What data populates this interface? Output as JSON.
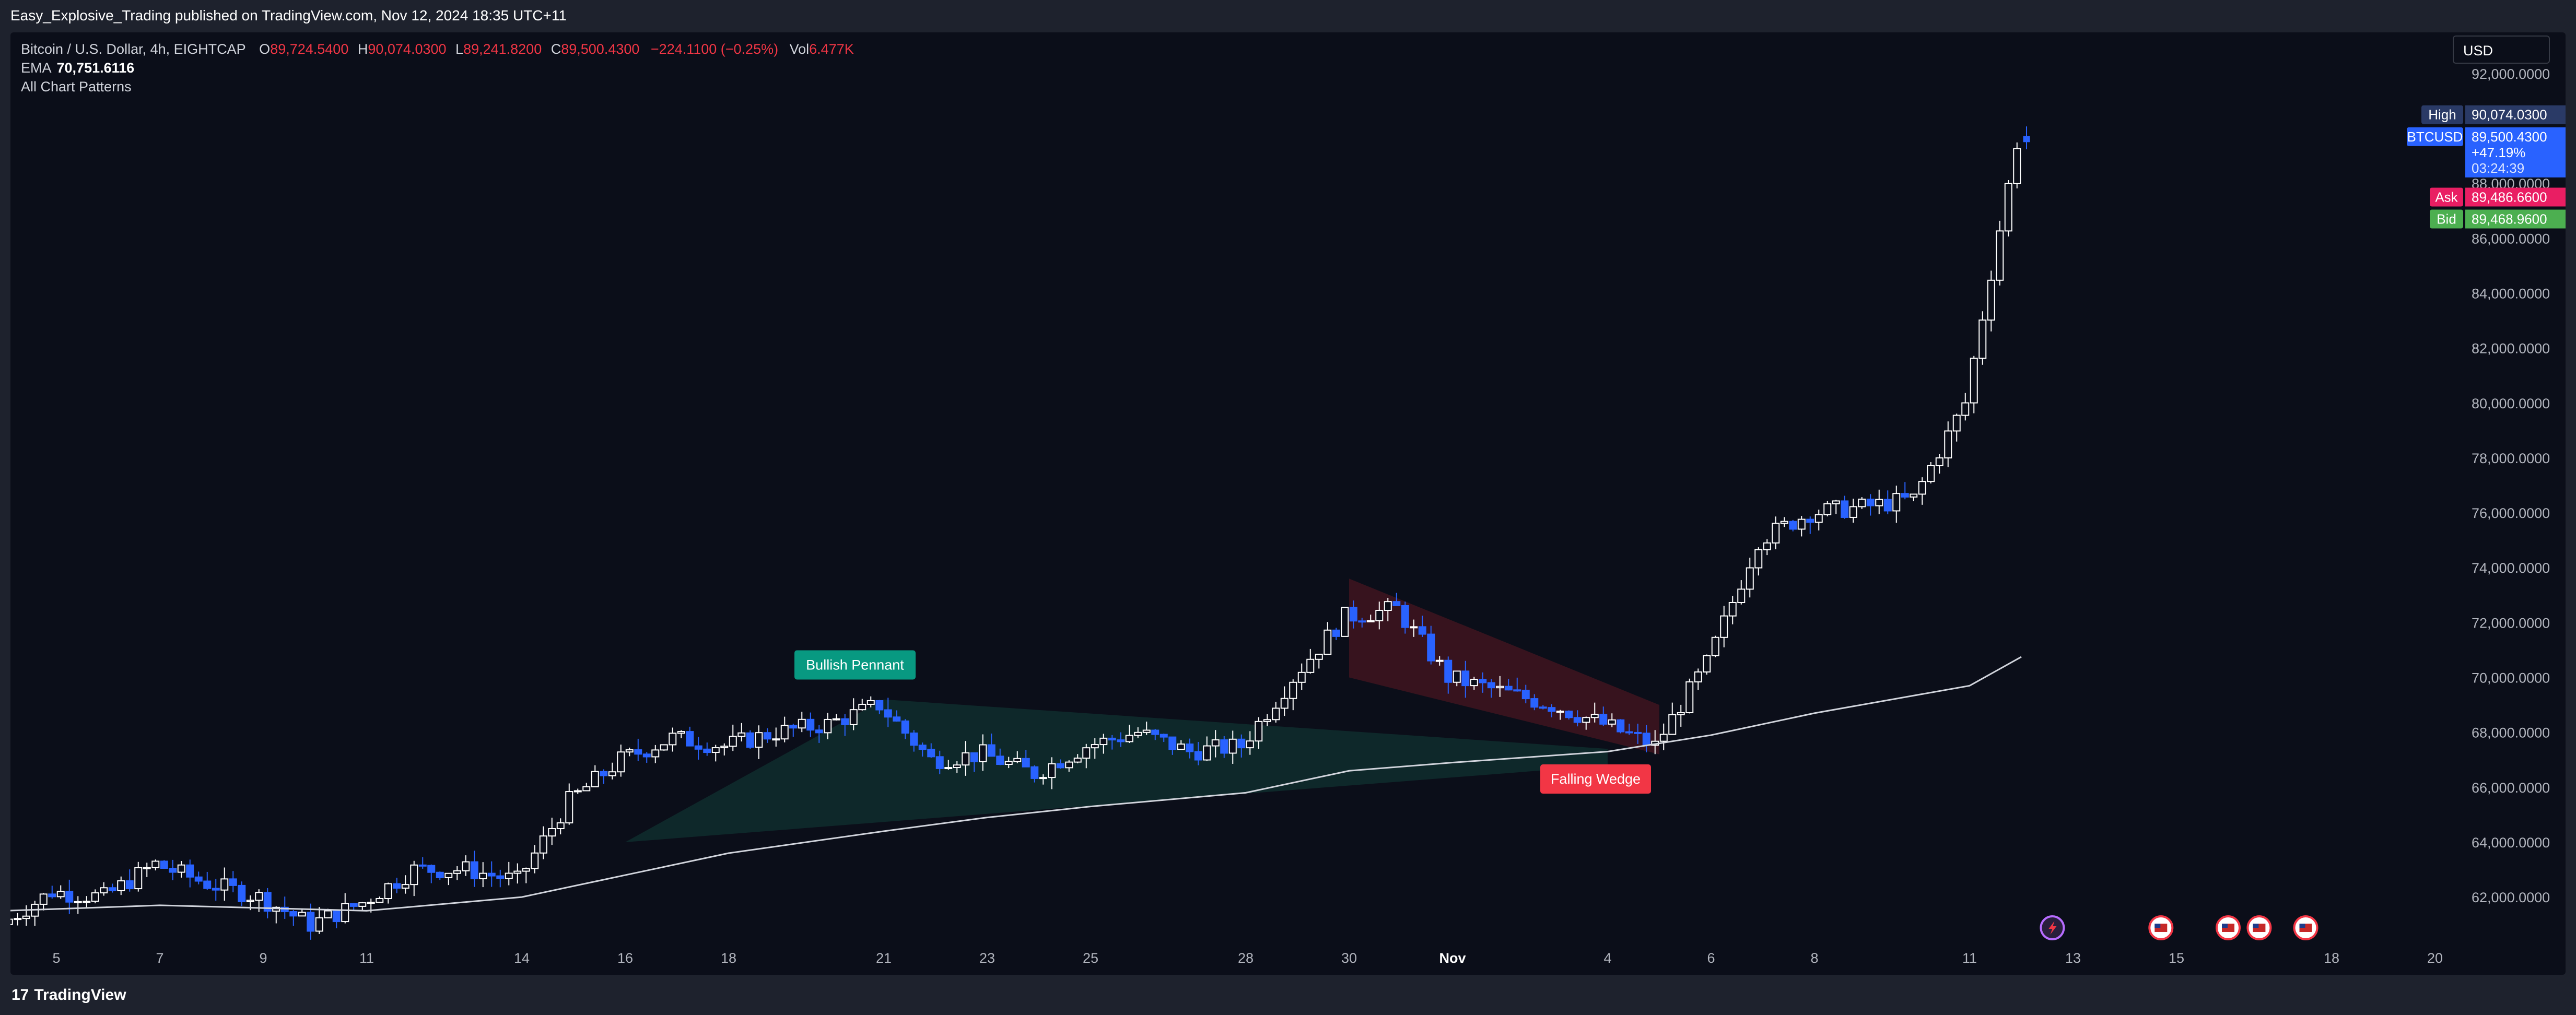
{
  "header": {
    "published": "Easy_Explosive_Trading published on TradingView.com, Nov 12, 2024 18:35 UTC+11"
  },
  "legend": {
    "symbol": "Bitcoin / U.S. Dollar, 4h, EIGHTCAP",
    "o_label": "O",
    "o": "89,724.5400",
    "h_label": "H",
    "h": "90,074.0300",
    "l_label": "L",
    "l": "89,241.8200",
    "c_label": "C",
    "c": "89,500.4300",
    "change": "−224.1100 (−0.25%)",
    "vol_label": "Vol",
    "vol": "6.477K",
    "ema_label": "EMA",
    "ema_value": "70,751.6116",
    "patterns_label": "All Chart Patterns"
  },
  "currency": "USD",
  "colors": {
    "background": "#0b0e19",
    "bull_candle": "#ffffff",
    "bear_candle": "#2962ff",
    "pennant_fill": "#0f2a2b",
    "pennant_label_bg": "#089981",
    "wedge_fill": "#3a141f",
    "wedge_label_bg": "#f23645",
    "ema_line": "#d1d4dc",
    "high_tag": "#2a3a66",
    "price_tag": "#2962ff",
    "ask_tag": "#e91e63",
    "bid_tag": "#4caf50"
  },
  "price_axis": {
    "ticks": [
      "92,000.0000",
      "88,000.0000",
      "86,000.0000",
      "84,000.0000",
      "82,000.0000",
      "80,000.0000",
      "78,000.0000",
      "76,000.0000",
      "74,000.0000",
      "72,000.0000",
      "70,000.0000",
      "68,000.0000",
      "66,000.0000",
      "64,000.0000",
      "62,000.0000"
    ],
    "tags": {
      "high_label": "High",
      "high_value": "90,074.0300",
      "symbol_label": "BTCUSD",
      "last_value": "89,500.4300",
      "last_change": "+47.19%",
      "countdown": "03:24:39",
      "ask_label": "Ask",
      "ask_value": "89,486.6600",
      "bid_label": "Bid",
      "bid_value": "89,468.9600"
    }
  },
  "time_axis": {
    "labels": [
      "5",
      "7",
      "9",
      "11",
      "14",
      "16",
      "18",
      "21",
      "23",
      "25",
      "28",
      "30",
      "Nov",
      "4",
      "6",
      "8",
      "11",
      "13",
      "15",
      "18",
      "20"
    ]
  },
  "patterns": {
    "pennant_label": "Bullish Pennant",
    "wedge_label": "Falling Wedge"
  },
  "events": {
    "icons": [
      "lightning-event-icon",
      "us-flag-event-icon",
      "us-flag-event-icon",
      "us-flag-event-icon",
      "us-flag-event-icon"
    ]
  },
  "footer": {
    "brand": "TradingView",
    "logo": "17"
  },
  "chart_data": {
    "type": "candlestick",
    "symbol": "BTCUSD",
    "timeframe": "4h",
    "ylim": [
      60500,
      93500
    ],
    "ema_value": 70751.6116,
    "close_path": [
      {
        "date": "Oct 4",
        "price": 61000
      },
      {
        "date": "Oct 5",
        "price": 62200
      },
      {
        "date": "Oct 6",
        "price": 62000
      },
      {
        "date": "Oct 7",
        "price": 63200
      },
      {
        "date": "Oct 8",
        "price": 62500
      },
      {
        "date": "Oct 9",
        "price": 62000
      },
      {
        "date": "Oct 10",
        "price": 61000
      },
      {
        "date": "Oct 11",
        "price": 61800
      },
      {
        "date": "Oct 12",
        "price": 63000
      },
      {
        "date": "Oct 13",
        "price": 63000
      },
      {
        "date": "Oct 14",
        "price": 62600
      },
      {
        "date": "Oct 15",
        "price": 65500
      },
      {
        "date": "Oct 16",
        "price": 67000
      },
      {
        "date": "Oct 17",
        "price": 67800
      },
      {
        "date": "Oct 18",
        "price": 67500
      },
      {
        "date": "Oct 19",
        "price": 68000
      },
      {
        "date": "Oct 20",
        "price": 68300
      },
      {
        "date": "Oct 21",
        "price": 69000
      },
      {
        "date": "Oct 22",
        "price": 67000
      },
      {
        "date": "Oct 23",
        "price": 67200
      },
      {
        "date": "Oct 24",
        "price": 66500
      },
      {
        "date": "Oct 25",
        "price": 67500
      },
      {
        "date": "Oct 26",
        "price": 68000
      },
      {
        "date": "Oct 27",
        "price": 67300
      },
      {
        "date": "Oct 28",
        "price": 67500
      },
      {
        "date": "Oct 29",
        "price": 70000
      },
      {
        "date": "Oct 30",
        "price": 72200
      },
      {
        "date": "Oct 31",
        "price": 72500
      },
      {
        "date": "Nov 1",
        "price": 70000
      },
      {
        "date": "Nov 2",
        "price": 69500
      },
      {
        "date": "Nov 3",
        "price": 69000
      },
      {
        "date": "Nov 4",
        "price": 68300
      },
      {
        "date": "Nov 5",
        "price": 67500
      },
      {
        "date": "Nov 6",
        "price": 70500
      },
      {
        "date": "Nov 7",
        "price": 75000
      },
      {
        "date": "Nov 8",
        "price": 76000
      },
      {
        "date": "Nov 9",
        "price": 76200
      },
      {
        "date": "Nov 10",
        "price": 76500
      },
      {
        "date": "Nov 11",
        "price": 80000
      },
      {
        "date": "Nov 12",
        "price": 89500
      }
    ],
    "ema_path": [
      {
        "date": "Oct 4",
        "price": 61500
      },
      {
        "date": "Oct 7",
        "price": 61700
      },
      {
        "date": "Oct 9",
        "price": 61600
      },
      {
        "date": "Oct 11",
        "price": 61500
      },
      {
        "date": "Oct 14",
        "price": 62000
      },
      {
        "date": "Oct 16",
        "price": 62800
      },
      {
        "date": "Oct 18",
        "price": 63600
      },
      {
        "date": "Oct 21",
        "price": 64400
      },
      {
        "date": "Oct 23",
        "price": 64900
      },
      {
        "date": "Oct 25",
        "price": 65300
      },
      {
        "date": "Oct 28",
        "price": 65800
      },
      {
        "date": "Oct 30",
        "price": 66600
      },
      {
        "date": "Nov 1",
        "price": 66900
      },
      {
        "date": "Nov 4",
        "price": 67300
      },
      {
        "date": "Nov 6",
        "price": 67900
      },
      {
        "date": "Nov 8",
        "price": 68700
      },
      {
        "date": "Nov 11",
        "price": 69700
      },
      {
        "date": "Nov 12",
        "price": 70750
      }
    ],
    "patterns": [
      {
        "name": "Bullish Pennant",
        "start": "Oct 16",
        "end": "Nov 4",
        "upper": [
          69200,
          67400
        ],
        "lower": [
          64000,
          66800
        ]
      },
      {
        "name": "Falling Wedge",
        "start": "Oct 30",
        "end": "Nov 5",
        "upper": [
          73600,
          69000
        ],
        "lower": [
          70000,
          67200
        ]
      }
    ],
    "last": {
      "open": 89724.54,
      "high": 90074.03,
      "low": 89241.82,
      "close": 89500.43
    }
  }
}
